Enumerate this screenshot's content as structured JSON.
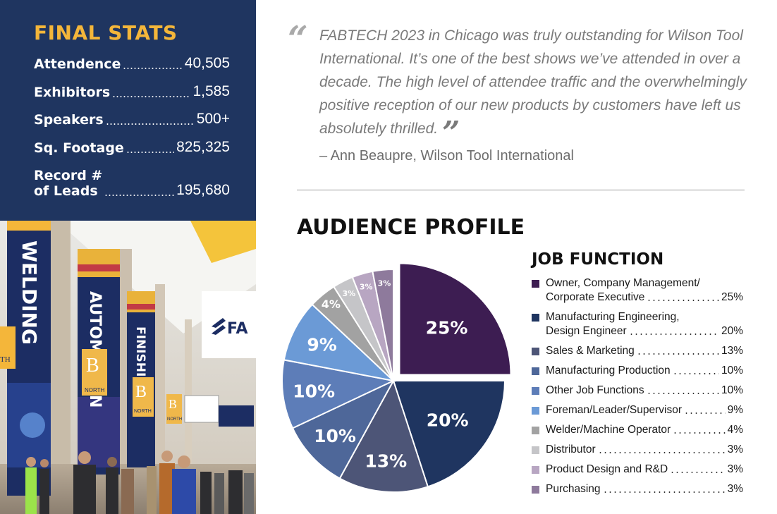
{
  "final_stats": {
    "title": "FINAL STATS",
    "rows": [
      {
        "label": "Attendence",
        "value": "40,505"
      },
      {
        "label": "Exhibitors",
        "value": "1,585"
      },
      {
        "label": "Speakers",
        "value": "500+"
      },
      {
        "label": "Sq. Footage",
        "value": "825,325"
      },
      {
        "label_line1": "Record #",
        "label_line2": "of Leads",
        "value": "195,680"
      }
    ]
  },
  "photo": {
    "banners": [
      "WELDING",
      "AUTOMATION",
      "FINISHING"
    ],
    "hall_signs": [
      "B",
      "B",
      "B",
      "NORTH",
      "NORTH",
      "NORTH"
    ],
    "sign_text": "FA",
    "truncated_left": "TH"
  },
  "quote": {
    "open_mark": "“",
    "text": "FABTECH 2023 in Chicago was truly outstanding for Wilson Tool International. It’s one of the best shows we’ve attended in over a decade. The high level of attendee traffic and the overwhelmingly positive reception of our new products by customers have left us absolutely thrilled.",
    "close_mark": "”",
    "attribution": "– Ann Beaupre, Wilson Tool International"
  },
  "section_title": "AUDIENCE PROFILE",
  "legend_title": "JOB FUNCTION",
  "chart_data": {
    "type": "pie",
    "title": "JOB FUNCTION",
    "unit": "%",
    "exploded_slice": 0,
    "slices": [
      {
        "label_line1": "Owner, Company Management/",
        "label_line2": "Corporate Executive",
        "value": 25,
        "display": "25%",
        "color": "#3d1d52"
      },
      {
        "label_line1": "Manufacturing Engineering,",
        "label_line2": "Design Engineer",
        "value": 20,
        "display": "20%",
        "color": "#1f3560"
      },
      {
        "label_line1": "Sales & Marketing",
        "value": 13,
        "display": "13%",
        "color": "#4d5577"
      },
      {
        "label_line1": "Manufacturing Production",
        "value": 10,
        "display": "10%",
        "color": "#4e6799"
      },
      {
        "label_line1": "Other Job Functions",
        "value": 10,
        "display": "10%",
        "color": "#5d7db8"
      },
      {
        "label_line1": "Foreman/Leader/Supervisor",
        "value": 9,
        "display": "9%",
        "color": "#6b9ad6"
      },
      {
        "label_line1": "Welder/Machine Operator",
        "value": 4,
        "display": "4%",
        "color": "#a2a2a2"
      },
      {
        "label_line1": "Distributor",
        "value": 3,
        "display": "3%",
        "color": "#c5c5c8"
      },
      {
        "label_line1": "Product Design and R&D",
        "value": 3,
        "display": "3%",
        "color": "#b8a6c2"
      },
      {
        "label_line1": "Purchasing",
        "value": 3,
        "display": "3%",
        "color": "#8e7a9c"
      }
    ]
  }
}
